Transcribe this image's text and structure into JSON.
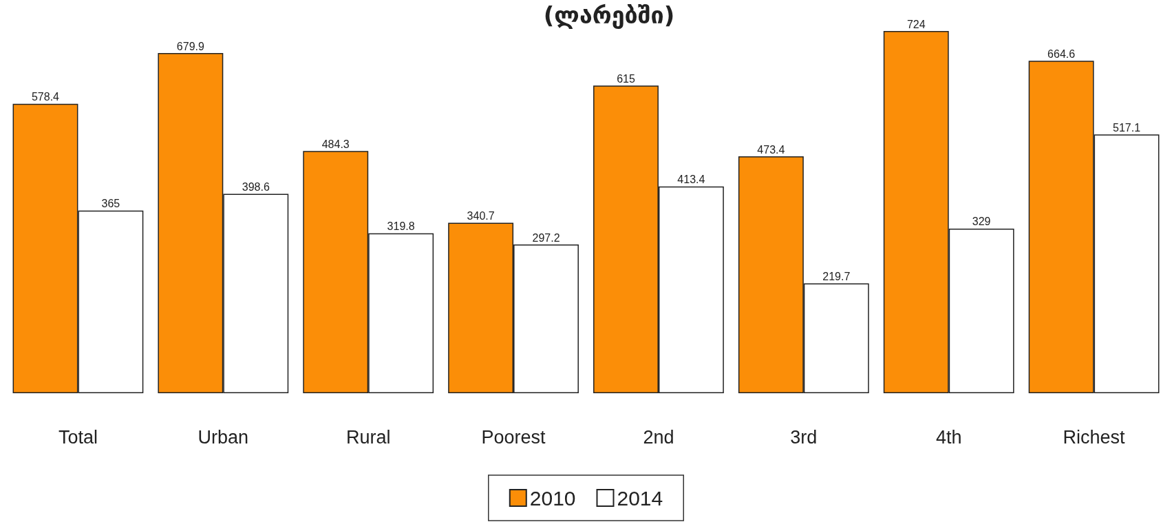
{
  "chart_data": {
    "type": "bar",
    "title": "(ლარებში)",
    "categories": [
      "Total",
      "Urban",
      "Rural",
      "Poorest",
      "2nd",
      "3rd",
      "4th",
      "Richest"
    ],
    "series": [
      {
        "name": "2010",
        "color": "#fb8e08",
        "values": [
          578.4,
          679.9,
          484.3,
          340.7,
          615,
          473.4,
          724,
          664.6
        ]
      },
      {
        "name": "2014",
        "color": "#ffffff",
        "values": [
          365,
          398.6,
          319.8,
          297.2,
          413.4,
          219.7,
          329,
          517.1
        ]
      }
    ],
    "data_labels": true,
    "legend": "bottom"
  }
}
